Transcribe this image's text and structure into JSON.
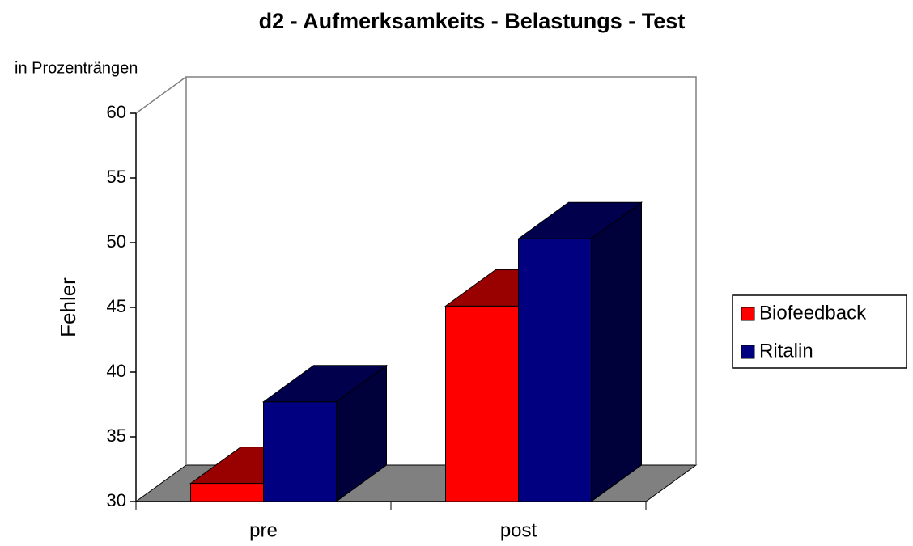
{
  "chart_data": {
    "type": "bar3d",
    "title": "d2 - Aufmerksamkeits - Belastungs - Test",
    "annotation": "in Prozenträngen",
    "y_label": "Fehler",
    "categories": [
      "pre",
      "post"
    ],
    "series": [
      {
        "name": "Biofeedback",
        "color": "#ff0000",
        "values": [
          31.4,
          45.1
        ]
      },
      {
        "name": "Ritalin",
        "color": "#000080",
        "values": [
          37.7,
          50.3
        ]
      }
    ],
    "ylim": [
      30,
      60
    ],
    "yticks": [
      30,
      35,
      40,
      45,
      50,
      55,
      60
    ],
    "legend": "right"
  }
}
